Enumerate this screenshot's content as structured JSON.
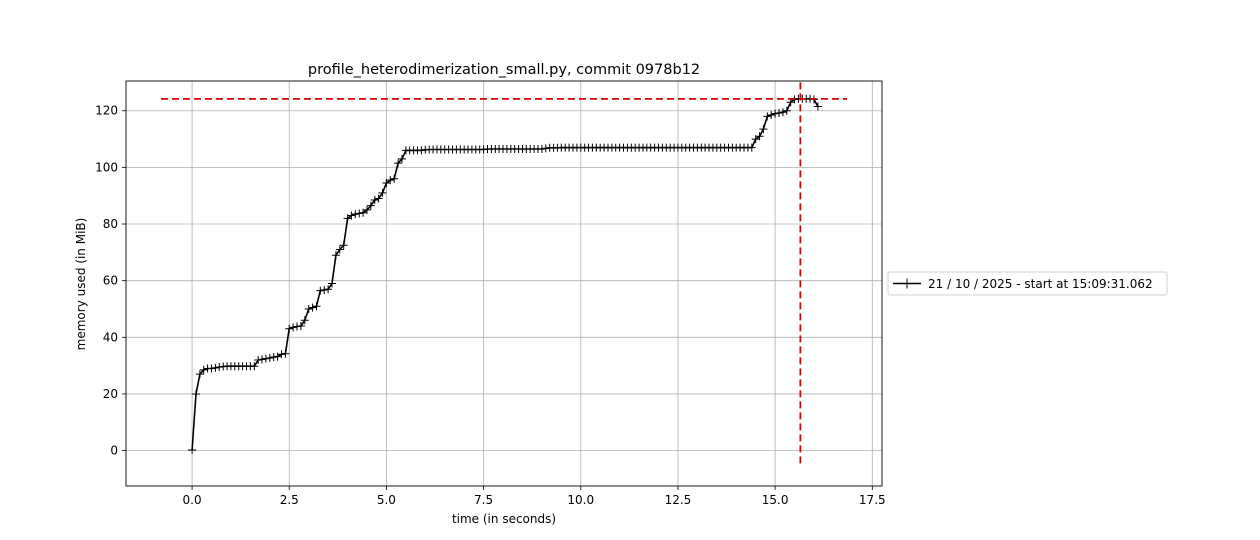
{
  "chart_data": {
    "type": "line",
    "title": "profile_heterodimerization_small.py, commit 0978b12",
    "xlabel": "time (in seconds)",
    "ylabel": "memory used (in MiB)",
    "xlim": [
      -1.7,
      17.75
    ],
    "ylim": [
      -12.5,
      130.5
    ],
    "xticks": [
      0.0,
      2.5,
      5.0,
      7.5,
      10.0,
      12.5,
      15.0,
      17.5
    ],
    "xtick_labels": [
      "0.0",
      "2.5",
      "5.0",
      "7.5",
      "10.0",
      "12.5",
      "15.0",
      "17.5"
    ],
    "yticks": [
      0,
      20,
      40,
      60,
      80,
      100,
      120
    ],
    "ytick_labels": [
      "0",
      "20",
      "40",
      "60",
      "80",
      "100",
      "120"
    ],
    "grid": true,
    "legend_position": "outside-right",
    "colors": {
      "series": "#000000",
      "peak_lines": "#dd0000",
      "grid": "#b0b0b0"
    },
    "peak_lines": {
      "horizontal": {
        "y": 124.2,
        "x_from": -0.8,
        "x_to": 16.85
      },
      "vertical": {
        "x": 15.65,
        "y_from": -5.5,
        "y_to": 130
      }
    },
    "series": [
      {
        "name": "21 / 10 / 2025 - start at 15:09:31.062",
        "x": [
          0.0,
          0.1,
          0.2,
          0.3,
          0.4,
          0.5,
          0.6,
          0.7,
          0.8,
          0.9,
          1.0,
          1.1,
          1.2,
          1.3,
          1.4,
          1.5,
          1.6,
          1.7,
          1.8,
          1.9,
          2.0,
          2.1,
          2.2,
          2.3,
          2.4,
          2.5,
          2.6,
          2.7,
          2.8,
          2.9,
          3.0,
          3.1,
          3.2,
          3.3,
          3.4,
          3.5,
          3.6,
          3.7,
          3.8,
          3.9,
          4.0,
          4.1,
          4.2,
          4.3,
          4.4,
          4.5,
          4.6,
          4.7,
          4.8,
          4.9,
          5.0,
          5.1,
          5.2,
          5.3,
          5.4,
          5.5,
          5.6,
          5.7,
          5.8,
          5.9,
          6.0,
          6.1,
          6.2,
          6.3,
          6.4,
          6.5,
          6.6,
          6.7,
          6.8,
          6.9,
          7.0,
          7.1,
          7.2,
          7.3,
          7.4,
          7.5,
          7.6,
          7.7,
          7.8,
          7.9,
          8.0,
          8.1,
          8.2,
          8.3,
          8.4,
          8.5,
          8.6,
          8.7,
          8.8,
          8.9,
          9.0,
          9.1,
          9.2,
          9.3,
          9.4,
          9.5,
          9.6,
          9.7,
          9.8,
          9.9,
          10.0,
          10.1,
          10.2,
          10.3,
          10.4,
          10.5,
          10.6,
          10.7,
          10.8,
          10.9,
          11.0,
          11.1,
          11.2,
          11.3,
          11.4,
          11.5,
          11.6,
          11.7,
          11.8,
          11.9,
          12.0,
          12.1,
          12.2,
          12.3,
          12.4,
          12.5,
          12.6,
          12.7,
          12.8,
          12.9,
          13.0,
          13.1,
          13.2,
          13.3,
          13.4,
          13.5,
          13.6,
          13.7,
          13.8,
          13.9,
          14.0,
          14.1,
          14.2,
          14.3,
          14.4,
          14.5,
          14.6,
          14.7,
          14.8,
          14.9,
          15.0,
          15.1,
          15.2,
          15.3,
          15.4,
          15.5,
          15.6,
          15.7,
          15.8,
          15.9,
          16.0,
          16.1
        ],
        "y": [
          0.2,
          20.0,
          27.0,
          28.5,
          29.0,
          29.0,
          29.2,
          29.5,
          29.7,
          29.8,
          29.8,
          29.8,
          29.8,
          29.8,
          29.8,
          29.8,
          29.8,
          32.0,
          32.2,
          32.5,
          32.7,
          33.0,
          33.2,
          34.0,
          34.2,
          43.0,
          43.5,
          43.8,
          44.0,
          46.0,
          50.0,
          50.5,
          51.0,
          56.5,
          56.7,
          57.0,
          59.0,
          69.0,
          71.0,
          72.5,
          82.0,
          83.0,
          83.5,
          83.7,
          84.0,
          85.0,
          86.5,
          88.5,
          89.0,
          91.0,
          94.5,
          95.5,
          96.0,
          101.5,
          103.0,
          106.0,
          106.0,
          106.0,
          106.0,
          106.0,
          106.2,
          106.3,
          106.3,
          106.3,
          106.3,
          106.3,
          106.3,
          106.3,
          106.3,
          106.3,
          106.3,
          106.3,
          106.3,
          106.3,
          106.3,
          106.3,
          106.5,
          106.5,
          106.5,
          106.5,
          106.5,
          106.5,
          106.5,
          106.5,
          106.5,
          106.5,
          106.5,
          106.5,
          106.5,
          106.5,
          106.5,
          106.7,
          106.9,
          106.9,
          106.9,
          107.0,
          107.0,
          107.0,
          107.0,
          107.0,
          107.0,
          107.0,
          107.0,
          107.0,
          107.0,
          107.0,
          107.0,
          107.0,
          107.0,
          107.0,
          107.0,
          107.0,
          107.0,
          107.0,
          107.0,
          107.0,
          107.0,
          107.0,
          107.0,
          107.0,
          107.0,
          107.0,
          107.0,
          107.0,
          107.0,
          107.0,
          107.0,
          107.0,
          107.0,
          107.0,
          107.0,
          107.0,
          107.0,
          107.0,
          107.0,
          107.0,
          107.0,
          107.0,
          107.0,
          107.0,
          107.0,
          107.0,
          107.0,
          107.0,
          107.0,
          110.0,
          111.0,
          113.5,
          118.0,
          118.5,
          119.0,
          119.2,
          119.5,
          120.0,
          123.0,
          124.0,
          124.2,
          124.2,
          124.2,
          124.2,
          124.0,
          121.5
        ]
      }
    ]
  }
}
